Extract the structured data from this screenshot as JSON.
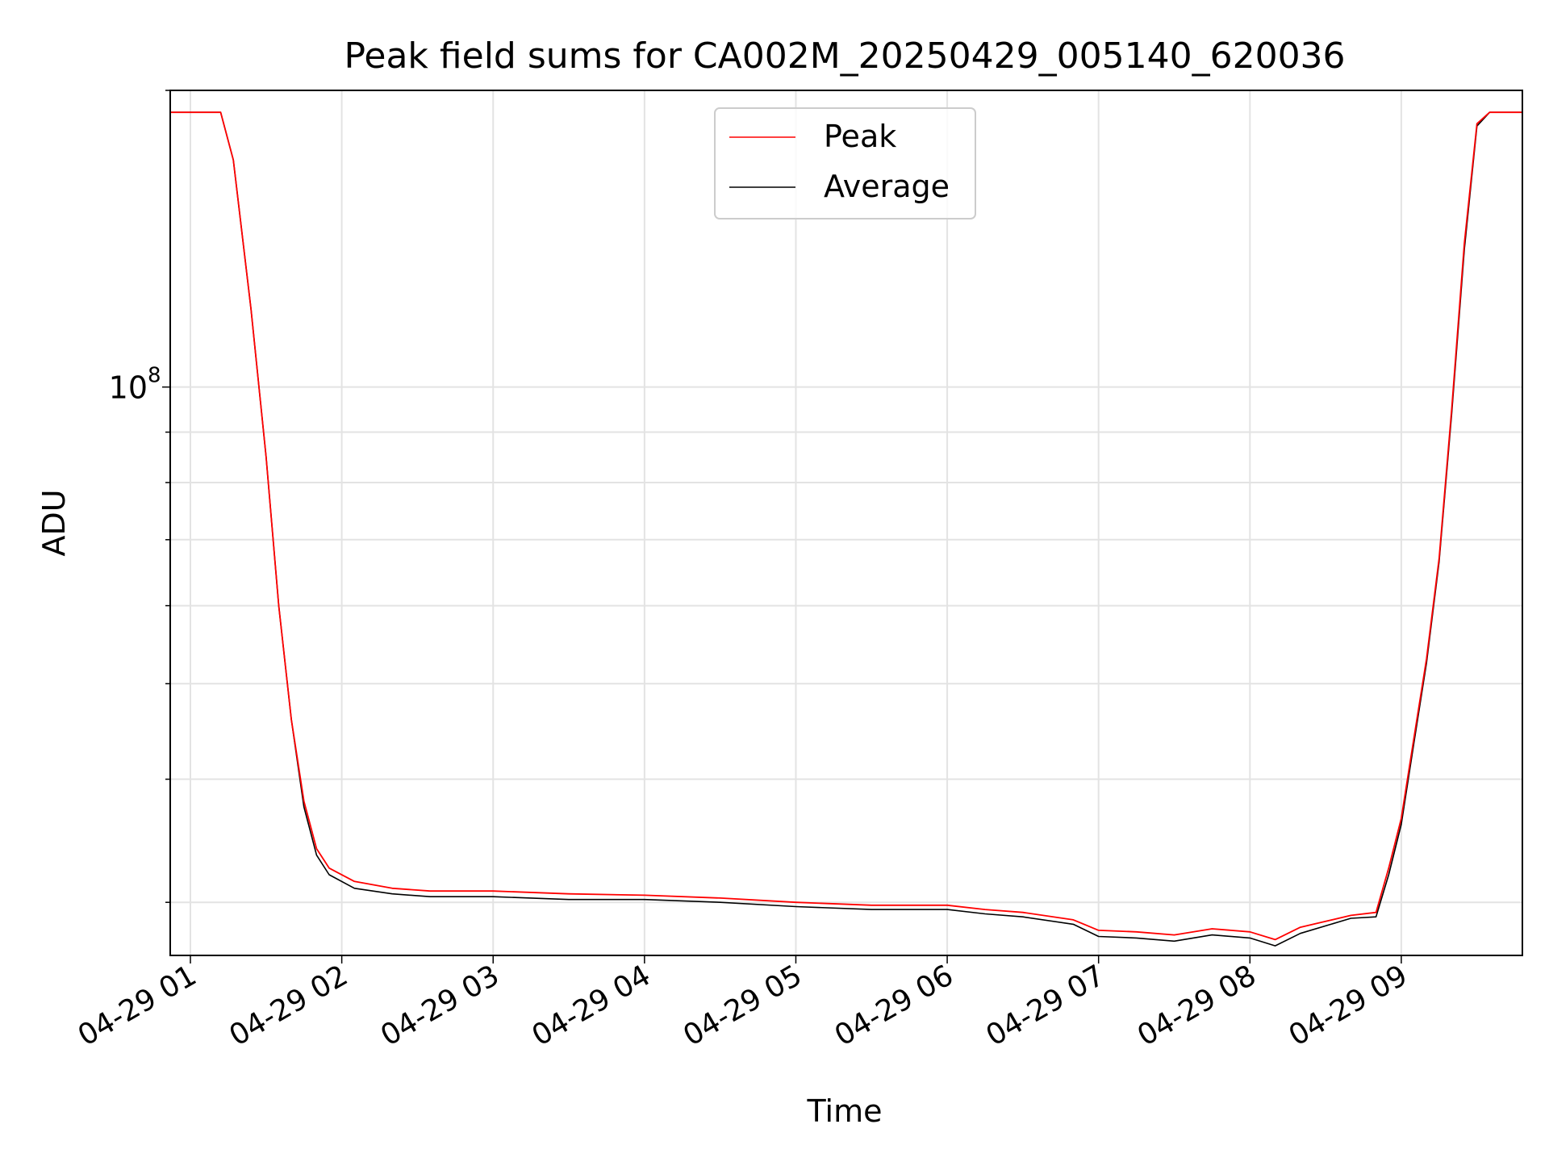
{
  "chart_data": {
    "type": "line",
    "title": "Peak field sums for CA002M_20250429_005140_620036",
    "xlabel": "Time",
    "ylabel": "ADU",
    "yscale": "log",
    "xlim": [
      "04-29 00:52",
      "04-29 09:48"
    ],
    "ylim": [
      26500000,
      200000000
    ],
    "grid": true,
    "legend": {
      "location": "upper center"
    },
    "x_ticks": [
      "04-29 01",
      "04-29 02",
      "04-29 03",
      "04-29 04",
      "04-29 05",
      "04-29 06",
      "04-29 07",
      "04-29 08",
      "04-29 09"
    ],
    "y_tick_labels": [
      {
        "value": 100000000,
        "base": "10",
        "exponent": "8"
      }
    ],
    "y_minor_ticks": [
      30000000,
      40000000,
      50000000,
      60000000,
      70000000,
      80000000,
      90000000,
      200000000
    ],
    "x": [
      "04-29 00:52",
      "04-29 01:12",
      "04-29 01:17",
      "04-29 01:24",
      "04-29 01:30",
      "04-29 01:35",
      "04-29 01:40",
      "04-29 01:45",
      "04-29 01:50",
      "04-29 01:55",
      "04-29 02:05",
      "04-29 02:20",
      "04-29 02:35",
      "04-29 03:00",
      "04-29 03:30",
      "04-29 04:00",
      "04-29 04:30",
      "04-29 05:00",
      "04-29 05:30",
      "04-29 06:00",
      "04-29 06:15",
      "04-29 06:30",
      "04-29 06:50",
      "04-29 07:00",
      "04-29 07:15",
      "04-29 07:30",
      "04-29 07:45",
      "04-29 08:00",
      "04-29 08:10",
      "04-29 08:20",
      "04-29 08:40",
      "04-29 08:50",
      "04-29 08:55",
      "04-29 09:00",
      "04-29 09:05",
      "04-29 09:10",
      "04-29 09:15",
      "04-29 09:20",
      "04-29 09:25",
      "04-29 09:30",
      "04-29 09:35",
      "04-29 09:48"
    ],
    "series": [
      {
        "name": "Peak",
        "color": "#ff0000",
        "values": [
          190000000,
          190000000,
          170000000,
          120000000,
          85000000,
          60000000,
          46000000,
          38000000,
          34000000,
          32500000,
          31500000,
          31000000,
          30800000,
          30800000,
          30600000,
          30500000,
          30300000,
          30000000,
          29800000,
          29800000,
          29500000,
          29300000,
          28800000,
          28100000,
          28000000,
          27800000,
          28200000,
          28000000,
          27500000,
          28300000,
          29100000,
          29300000,
          32500000,
          36500000,
          44000000,
          53000000,
          67000000,
          95000000,
          140000000,
          185000000,
          190000000,
          190000000
        ]
      },
      {
        "name": "Average",
        "color": "#000000",
        "values": [
          190000000,
          190000000,
          170000000,
          120000000,
          85000000,
          60000000,
          46000000,
          37500000,
          33500000,
          32000000,
          31000000,
          30600000,
          30400000,
          30400000,
          30200000,
          30200000,
          30000000,
          29700000,
          29500000,
          29500000,
          29200000,
          29000000,
          28500000,
          27700000,
          27600000,
          27400000,
          27800000,
          27600000,
          27100000,
          27900000,
          28900000,
          29000000,
          32000000,
          36000000,
          43500000,
          52500000,
          66500000,
          94000000,
          138000000,
          184000000,
          190000000,
          190000000
        ]
      }
    ]
  }
}
